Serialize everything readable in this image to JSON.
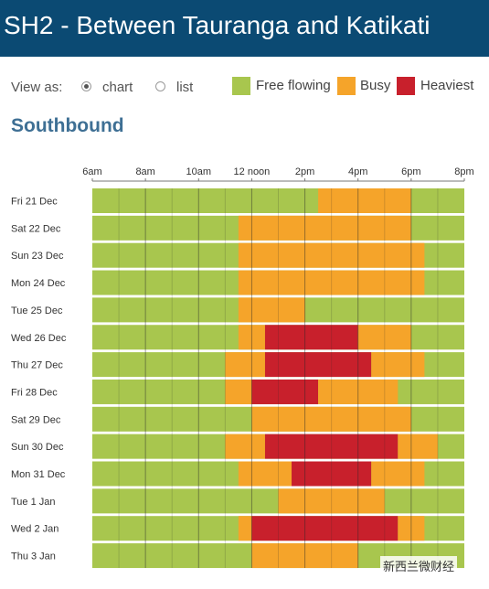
{
  "header": {
    "title": "SH2 - Between Tauranga and Katikati"
  },
  "controls": {
    "view_as_label": "View as:",
    "options": [
      {
        "label": "chart",
        "selected": true
      },
      {
        "label": "list",
        "selected": false
      }
    ]
  },
  "legend": [
    {
      "label": "Free flowing",
      "color": "#a8c64e"
    },
    {
      "label": "Busy",
      "color": "#f5a42a"
    },
    {
      "label": "Heaviest",
      "color": "#c8202c"
    }
  ],
  "section": {
    "title": "Southbound"
  },
  "watermark": {
    "text": "新西兰微财经"
  },
  "chart_data": {
    "type": "timeline",
    "x_ticks": [
      "6am",
      "8am",
      "10am",
      "12 noon",
      "2pm",
      "4pm",
      "6pm",
      "8pm"
    ],
    "x_range_hours": [
      6,
      20
    ],
    "x_unit": "hour of day",
    "colors": {
      "free": "#a8c64e",
      "busy": "#f5a42a",
      "heavy": "#c8202c"
    },
    "rows": [
      {
        "day": "Fri 21 Dec",
        "segments": [
          {
            "start": 14.5,
            "end": 18,
            "level": "busy"
          }
        ]
      },
      {
        "day": "Sat 22 Dec",
        "segments": [
          {
            "start": 11.5,
            "end": 18,
            "level": "busy"
          }
        ]
      },
      {
        "day": "Sun 23 Dec",
        "segments": [
          {
            "start": 11.5,
            "end": 18.5,
            "level": "busy"
          }
        ]
      },
      {
        "day": "Mon 24 Dec",
        "segments": [
          {
            "start": 11.5,
            "end": 18.5,
            "level": "busy"
          }
        ]
      },
      {
        "day": "Tue 25 Dec",
        "segments": [
          {
            "start": 11.5,
            "end": 14,
            "level": "busy"
          }
        ]
      },
      {
        "day": "Wed 26 Dec",
        "segments": [
          {
            "start": 11.5,
            "end": 12.5,
            "level": "busy"
          },
          {
            "start": 12.5,
            "end": 16,
            "level": "heavy"
          },
          {
            "start": 16,
            "end": 18,
            "level": "busy"
          }
        ]
      },
      {
        "day": "Thu 27 Dec",
        "segments": [
          {
            "start": 11,
            "end": 12.5,
            "level": "busy"
          },
          {
            "start": 12.5,
            "end": 16.5,
            "level": "heavy"
          },
          {
            "start": 16.5,
            "end": 18.5,
            "level": "busy"
          }
        ]
      },
      {
        "day": "Fri 28 Dec",
        "segments": [
          {
            "start": 11,
            "end": 12,
            "level": "busy"
          },
          {
            "start": 12,
            "end": 14.5,
            "level": "heavy"
          },
          {
            "start": 14.5,
            "end": 17.5,
            "level": "busy"
          }
        ]
      },
      {
        "day": "Sat 29 Dec",
        "segments": [
          {
            "start": 12,
            "end": 18,
            "level": "busy"
          }
        ]
      },
      {
        "day": "Sun 30 Dec",
        "segments": [
          {
            "start": 11,
            "end": 12.5,
            "level": "busy"
          },
          {
            "start": 12.5,
            "end": 17.5,
            "level": "heavy"
          },
          {
            "start": 17.5,
            "end": 19,
            "level": "busy"
          }
        ]
      },
      {
        "day": "Mon 31 Dec",
        "segments": [
          {
            "start": 11.5,
            "end": 13.5,
            "level": "busy"
          },
          {
            "start": 13.5,
            "end": 16.5,
            "level": "heavy"
          },
          {
            "start": 16.5,
            "end": 18.5,
            "level": "busy"
          }
        ]
      },
      {
        "day": "Tue 1 Jan",
        "segments": [
          {
            "start": 13,
            "end": 17,
            "level": "busy"
          }
        ]
      },
      {
        "day": "Wed 2 Jan",
        "segments": [
          {
            "start": 11.5,
            "end": 12,
            "level": "busy"
          },
          {
            "start": 12,
            "end": 17.5,
            "level": "heavy"
          },
          {
            "start": 17.5,
            "end": 18.5,
            "level": "busy"
          }
        ]
      },
      {
        "day": "Thu 3 Jan",
        "segments": [
          {
            "start": 12,
            "end": 16,
            "level": "busy"
          }
        ]
      }
    ]
  }
}
